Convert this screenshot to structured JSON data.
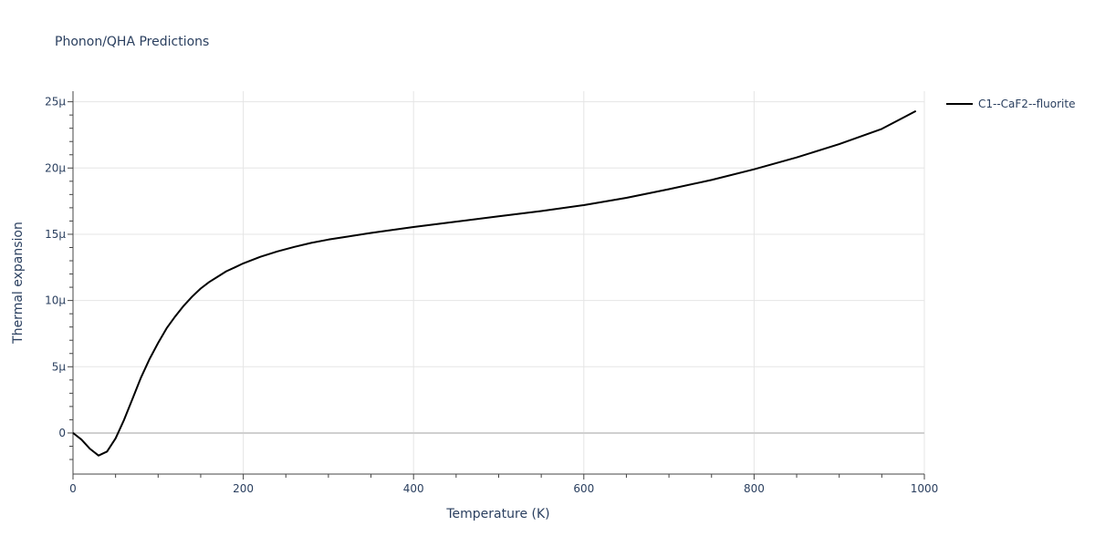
{
  "chart_data": {
    "type": "line",
    "title": "Phonon/QHA Predictions",
    "xlabel": "Temperature (K)",
    "ylabel": "Thermal expansion",
    "xlim": [
      0,
      1000
    ],
    "ylim": [
      -3.1e-06,
      2.58e-05
    ],
    "x_ticks": [
      0,
      200,
      400,
      600,
      800,
      1000
    ],
    "x_tick_labels": [
      "0",
      "200",
      "400",
      "600",
      "800",
      "1000"
    ],
    "y_ticks": [
      0,
      5e-06,
      1e-05,
      1.5e-05,
      2e-05,
      2.5e-05
    ],
    "y_tick_labels": [
      "0",
      "5μ",
      "10μ",
      "15μ",
      "20μ",
      "25μ"
    ],
    "grid": true,
    "legend_position": "top-right",
    "series": [
      {
        "name": "C1--CaF2--fluorite",
        "color": "#000000",
        "x": [
          0,
          10,
          20,
          30,
          40,
          50,
          60,
          70,
          80,
          90,
          100,
          110,
          120,
          130,
          140,
          150,
          160,
          170,
          180,
          190,
          200,
          220,
          240,
          260,
          280,
          300,
          320,
          350,
          400,
          450,
          500,
          550,
          600,
          650,
          700,
          750,
          800,
          850,
          900,
          950,
          990
        ],
        "y": [
          0,
          -5e-07,
          -1.2e-06,
          -1.7e-06,
          -1.4e-06,
          -4e-07,
          1e-06,
          2.6e-06,
          4.2e-06,
          5.6e-06,
          6.8e-06,
          7.9e-06,
          8.8e-06,
          9.6e-06,
          1.03e-05,
          1.09e-05,
          1.14e-05,
          1.18e-05,
          1.22e-05,
          1.25e-05,
          1.28e-05,
          1.33e-05,
          1.37e-05,
          1.405e-05,
          1.435e-05,
          1.46e-05,
          1.48e-05,
          1.51e-05,
          1.555e-05,
          1.595e-05,
          1.635e-05,
          1.675e-05,
          1.72e-05,
          1.775e-05,
          1.84e-05,
          1.91e-05,
          1.99e-05,
          2.08e-05,
          2.18e-05,
          2.295e-05,
          2.43e-05
        ]
      }
    ]
  }
}
